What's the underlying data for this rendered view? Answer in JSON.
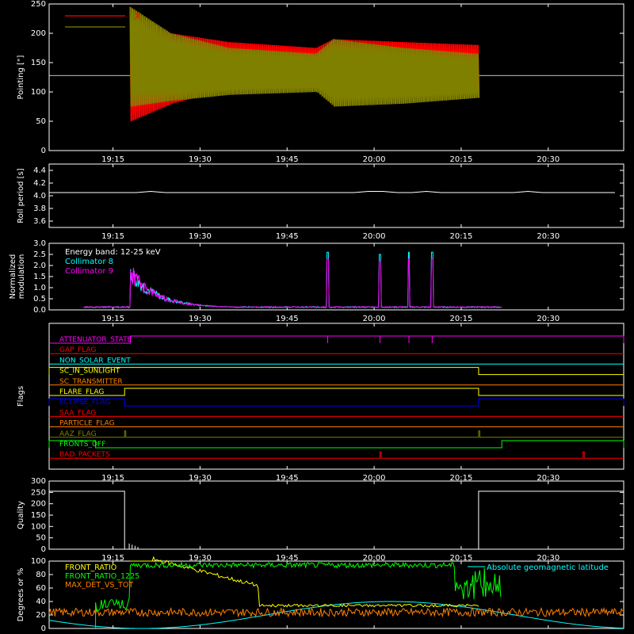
{
  "colors": {
    "background": "#000000",
    "axis": "#ffffff",
    "red": "#ff0000",
    "olive": "#808000",
    "cyan": "#00ffff",
    "magenta": "#ff00ff",
    "yellow": "#ffff00",
    "green": "#00ff00",
    "orange": "#ff8000",
    "blue": "#0000ff",
    "white": "#ffffff"
  },
  "x_ticks": [
    "19:15",
    "19:30",
    "19:45",
    "20:00",
    "20:15",
    "20:30"
  ],
  "chart_data": [
    {
      "id": "pointing",
      "type": "line",
      "ylabel": "Pointing [\"]",
      "ylim": [
        0,
        250
      ],
      "yticks": [
        "0",
        "50",
        "100",
        "150",
        "200",
        "250"
      ],
      "xlim": [
        "19:04",
        "20:43"
      ],
      "legend_placement": "top-left",
      "series": [
        {
          "name": "X",
          "color": "#ff0000",
          "envelope": [
            {
              "t": "19:18",
              "lo": 50,
              "hi": 240
            },
            {
              "t": "19:25",
              "lo": 80,
              "hi": 200
            },
            {
              "t": "19:35",
              "lo": 105,
              "hi": 185
            },
            {
              "t": "19:50",
              "lo": 115,
              "hi": 175
            },
            {
              "t": "19:53",
              "lo": 95,
              "hi": 190
            },
            {
              "t": "20:05",
              "lo": 105,
              "hi": 185
            },
            {
              "t": "20:18",
              "lo": 100,
              "hi": 180
            }
          ]
        },
        {
          "name": "Y",
          "color": "#808000",
          "envelope": [
            {
              "t": "19:18",
              "lo": 75,
              "hi": 245
            },
            {
              "t": "19:25",
              "lo": 85,
              "hi": 200
            },
            {
              "t": "19:35",
              "lo": 95,
              "hi": 175
            },
            {
              "t": "19:50",
              "lo": 100,
              "hi": 165
            },
            {
              "t": "19:53",
              "lo": 75,
              "hi": 190
            },
            {
              "t": "20:05",
              "lo": 80,
              "hi": 175
            },
            {
              "t": "20:18",
              "lo": 90,
              "hi": 165
            }
          ]
        }
      ],
      "reference_line": 128
    },
    {
      "id": "roll-period",
      "type": "line",
      "ylabel": "Roll period [s]",
      "ylim": [
        3.5,
        4.5
      ],
      "yticks": [
        "3.6",
        "3.8",
        "4.0",
        "4.2",
        "4.4"
      ],
      "series": [
        {
          "color": "#ffffff",
          "value": 4.05
        }
      ]
    },
    {
      "id": "modulation",
      "type": "line",
      "ylabel": "Normalized modulation",
      "ylim": [
        0,
        3
      ],
      "yticks": [
        "0.0",
        "0.5",
        "1.0",
        "1.5",
        "2.0",
        "2.5",
        "3.0"
      ],
      "legend_placement": "top-left",
      "legend_title": "Energy band: 12-25 keV",
      "series": [
        {
          "name": "Collimator 8",
          "color": "#00ffff"
        },
        {
          "name": "Collimator 9",
          "color": "#ff00ff"
        }
      ],
      "spikes": [
        {
          "t": "19:52",
          "v": 2.6
        },
        {
          "t": "20:01",
          "v": 2.0
        },
        {
          "t": "20:01",
          "v": 2.5
        },
        {
          "t": "20:06",
          "v": 2.6
        },
        {
          "t": "20:10",
          "v": 2.6
        }
      ],
      "decay": {
        "start": "19:18",
        "peak": 1.7,
        "end": "19:35",
        "baseline": 0.1
      }
    },
    {
      "id": "flags",
      "type": "line",
      "ylabel": "Flags",
      "flags": [
        {
          "name": "ATTENUATOR_STATE",
          "color": "#ff00ff",
          "high": [
            [
              "19:18",
              "19:52"
            ],
            [
              "19:52",
              "20:01"
            ],
            [
              "20:01",
              "20:06"
            ],
            [
              "20:06",
              "20:10"
            ],
            [
              "20:10",
              "20:43"
            ]
          ]
        },
        {
          "name": "GAP_FLAG",
          "color": "#ff0000",
          "high": []
        },
        {
          "name": "NON_SOLAR_EVENT",
          "color": "#00ffff",
          "high": []
        },
        {
          "name": "SC_IN_SUNLIGHT",
          "color": "#ffff00",
          "high": [
            [
              "19:04",
              "20:18"
            ]
          ],
          "start_high_at": "19:17"
        },
        {
          "name": "SC_TRANSMITTER",
          "color": "#ff8000",
          "high": []
        },
        {
          "name": "FLARE_FLAG",
          "color": "#ffff00",
          "high": [
            [
              "19:17",
              "20:18"
            ]
          ]
        },
        {
          "name": "ECLIPSE_FLAG",
          "color": "#0000ff",
          "high": [
            [
              "19:04",
              "19:17"
            ],
            [
              "20:18",
              "20:43"
            ]
          ]
        },
        {
          "name": "SAA_FLAG",
          "color": "#ff0000",
          "high": []
        },
        {
          "name": "PARTICLE_FLAG",
          "color": "#ff8000",
          "high": []
        },
        {
          "name": "AAZ_FLAG",
          "color": "#808000",
          "high": [
            [
              "19:17",
              "19:17"
            ],
            [
              "20:18",
              "20:18"
            ]
          ]
        },
        {
          "name": "FRONTS_OFF",
          "color": "#00ff00",
          "high": [
            [
              "19:04",
              "19:12"
            ],
            [
              "20:22",
              "20:43"
            ]
          ]
        },
        {
          "name": "BAD_PACKETS",
          "color": "#ff0000",
          "high": [
            [
              "20:01",
              "20:01"
            ],
            [
              "20:36",
              "20:36"
            ]
          ]
        }
      ]
    },
    {
      "id": "quality",
      "type": "line",
      "ylabel": "Quality",
      "ylim": [
        0,
        300
      ],
      "yticks": [
        "0",
        "50",
        "100",
        "150",
        "200",
        "250",
        "300"
      ],
      "series": [
        {
          "color": "#ffffff",
          "points": [
            [
              "19:04",
              255
            ],
            [
              "19:17",
              255
            ],
            [
              "19:17",
              0
            ],
            [
              "20:18",
              0
            ],
            [
              "20:18",
              255
            ],
            [
              "20:43",
              255
            ]
          ]
        }
      ]
    },
    {
      "id": "degrees",
      "type": "line",
      "ylabel": "Degrees or %",
      "ylim": [
        0,
        100
      ],
      "yticks": [
        "0",
        "20",
        "40",
        "60",
        "80",
        "100"
      ],
      "legend_placement": "top-left",
      "series": [
        {
          "name": "FRONT_RATIO",
          "color": "#ffff00"
        },
        {
          "name": "FRONT_RATIO_1225",
          "color": "#00ff00"
        },
        {
          "name": "MAX_DET_VS_TOT",
          "color": "#ff8000"
        },
        {
          "name": "Absolute geomagnetic latitude",
          "color": "#00ffff"
        }
      ]
    }
  ]
}
